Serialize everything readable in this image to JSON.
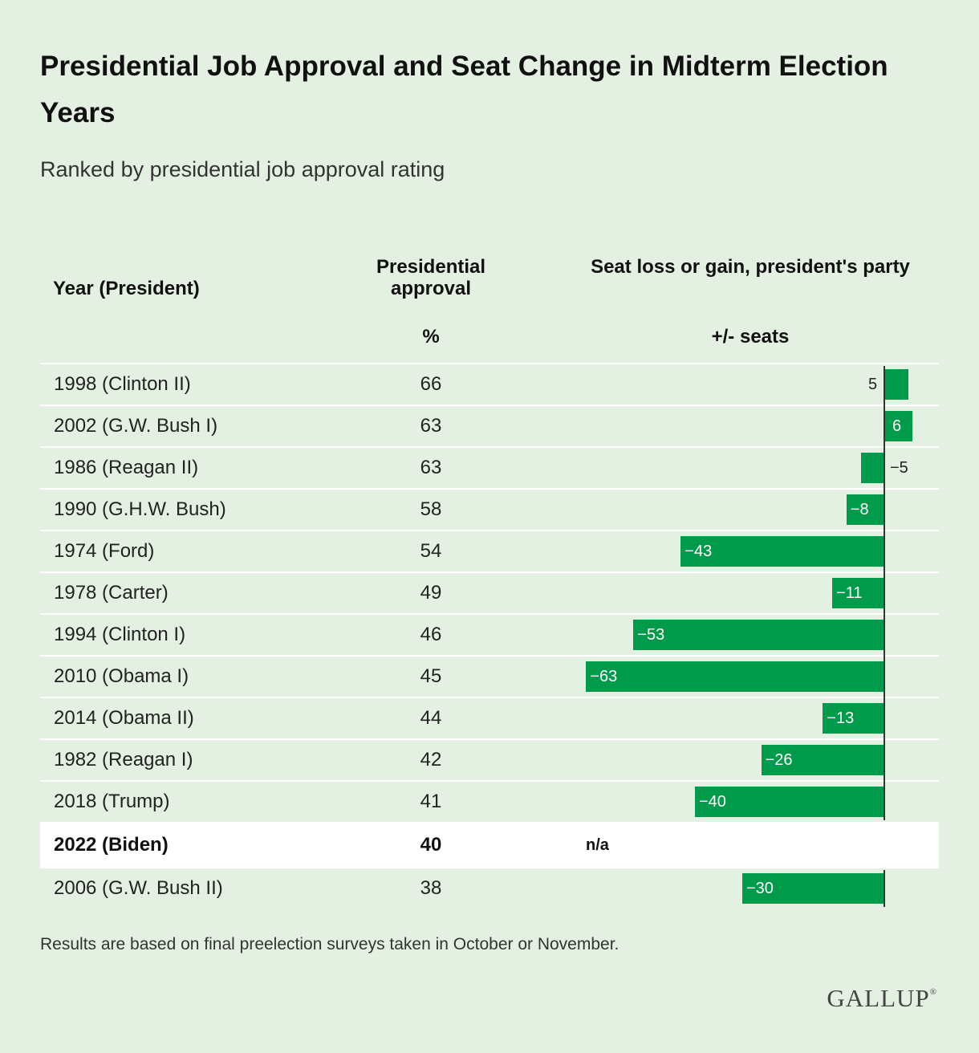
{
  "title": "Presidential Job Approval and Seat Change in Midterm Election Years",
  "subtitle": "Ranked by presidential job approval rating",
  "headers": {
    "year": "Year (President)",
    "approval": "Presidential approval",
    "approval_unit": "%",
    "seats": "Seat loss or gain, president's party",
    "seats_unit": "+/- seats"
  },
  "footnote": "Results are based on final preelection surveys taken in October or November.",
  "logo": "GALLUP",
  "colors": {
    "background": "#e4f1e2",
    "bar": "#009a4b",
    "highlight_row": "#ffffff"
  },
  "chart_data": {
    "type": "bar",
    "orientation": "horizontal",
    "xlim": [
      -63,
      6
    ],
    "rows": [
      {
        "year": "1998 (Clinton II)",
        "approval": 66,
        "seats": 5,
        "seats_label": "5"
      },
      {
        "year": "2002 (G.W. Bush I)",
        "approval": 63,
        "seats": 6,
        "seats_label": "6"
      },
      {
        "year": "1986 (Reagan II)",
        "approval": 63,
        "seats": -5,
        "seats_label": "−5"
      },
      {
        "year": "1990 (G.H.W. Bush)",
        "approval": 58,
        "seats": -8,
        "seats_label": "−8"
      },
      {
        "year": "1974 (Ford)",
        "approval": 54,
        "seats": -43,
        "seats_label": "−43"
      },
      {
        "year": "1978 (Carter)",
        "approval": 49,
        "seats": -11,
        "seats_label": "−11"
      },
      {
        "year": "1994 (Clinton I)",
        "approval": 46,
        "seats": -53,
        "seats_label": "−53"
      },
      {
        "year": "2010 (Obama I)",
        "approval": 45,
        "seats": -63,
        "seats_label": "−63"
      },
      {
        "year": "2014 (Obama II)",
        "approval": 44,
        "seats": -13,
        "seats_label": "−13"
      },
      {
        "year": "1982 (Reagan I)",
        "approval": 42,
        "seats": -26,
        "seats_label": "−26"
      },
      {
        "year": "2018 (Trump)",
        "approval": 41,
        "seats": -40,
        "seats_label": "−40"
      },
      {
        "year": "2022 (Biden)",
        "approval": 40,
        "seats": null,
        "seats_label": "n/a",
        "highlight": true
      },
      {
        "year": "2006 (G.W. Bush II)",
        "approval": 38,
        "seats": -30,
        "seats_label": "−30"
      }
    ]
  }
}
